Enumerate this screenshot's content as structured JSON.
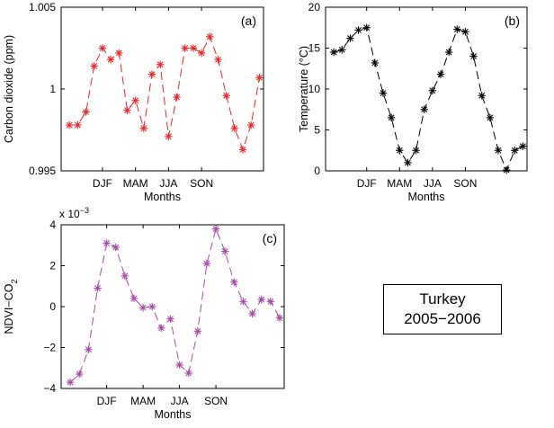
{
  "chart_data": [
    {
      "type": "line",
      "panel_label": "(a)",
      "xlabel": "Months",
      "ylabel": "Carbon dioxide (ppm)",
      "x_tick_labels": [
        "DJF",
        "MAM",
        "JJA",
        "SON"
      ],
      "x_tick_positions": [
        5,
        9,
        13,
        17
      ],
      "xlim": [
        0,
        21
      ],
      "ylim": [
        0.995,
        1.005
      ],
      "y_ticks": [
        0.995,
        1,
        1.005
      ],
      "y_tick_labels": [
        "0.995",
        "1",
        "1.005"
      ],
      "color": "#e8262a",
      "marker": "asterisk",
      "line_style": "dashed",
      "series": [
        {
          "x": [
            1,
            2,
            3,
            4,
            5,
            6,
            7,
            8,
            9,
            10,
            11,
            12,
            13,
            14,
            15,
            16,
            17,
            18,
            19,
            20
          ],
          "values": [
            0.9978,
            0.9978,
            0.9986,
            1.0014,
            1.0025,
            1.0018,
            1.0022,
            0.9987,
            0.9993,
            0.9976,
            1.0009,
            1.0015,
            0.9971,
            0.9995,
            1.0025,
            1.0025,
            1.0022,
            1.0032,
            1.0018,
            0.9996
          ]
        }
      ],
      "extra_series_tail": {
        "x": [
          21,
          22,
          23,
          24
        ],
        "values": [
          0.9976,
          0.9963,
          0.9978,
          1.0007
        ]
      }
    },
    {
      "type": "line",
      "panel_label": "(b)",
      "xlabel": "Months",
      "ylabel": "Temperature (°C)",
      "x_tick_labels": [
        "DJF",
        "MAM",
        "JJA",
        "SON"
      ],
      "x_tick_positions": [
        5,
        9,
        13,
        17
      ],
      "y_ticks": [
        0,
        5,
        10,
        15,
        20
      ],
      "y_tick_labels": [
        "0",
        "5",
        "10",
        "15",
        "20"
      ],
      "color": "#000000",
      "marker": "asterisk",
      "line_style": "dashed",
      "series": [
        {
          "x": [
            1,
            2,
            3,
            4,
            5,
            6,
            7,
            8,
            9,
            10,
            11,
            12,
            13,
            14,
            15,
            16,
            17,
            18,
            19,
            20,
            21,
            22,
            23,
            24
          ],
          "values": [
            14.5,
            14.8,
            16.2,
            17.2,
            17.5,
            13.2,
            9.5,
            6.5,
            2.5,
            1.0,
            2.5,
            7.5,
            9.8,
            11.8,
            14.5,
            17.3,
            17.0,
            14.0,
            9.2,
            6.5,
            2.5,
            0.1,
            2.5,
            3.0
          ]
        }
      ]
    },
    {
      "type": "line",
      "panel_label": "(c)",
      "xlabel": "Months",
      "ylabel": "NDVI−CO",
      "ylabel_subscript": "2",
      "y_exponent_label": "x 10",
      "y_exponent_power": "−3",
      "x_tick_labels": [
        "DJF",
        "MAM",
        "JJA",
        "SON"
      ],
      "x_tick_positions": [
        5,
        9,
        13,
        17
      ],
      "ylim": [
        -4,
        4
      ],
      "y_ticks": [
        -4,
        -2,
        0,
        2,
        4
      ],
      "y_tick_labels": [
        "−4",
        "−2",
        "0",
        "2",
        "4"
      ],
      "color": "#a64aa6",
      "marker": "asterisk",
      "line_style": "dashed",
      "series": [
        {
          "x": [
            1,
            2,
            3,
            4,
            5,
            6,
            7,
            8,
            9,
            10,
            11,
            12,
            13,
            14,
            15,
            16,
            17,
            18,
            19,
            20,
            21,
            22,
            23,
            24
          ],
          "values": [
            -3.7,
            -3.3,
            -2.1,
            0.9,
            3.1,
            2.9,
            1.5,
            0.4,
            -0.05,
            0.0,
            -1.05,
            -0.6,
            -2.85,
            -3.25,
            -1.2,
            2.1,
            3.8,
            2.7,
            1.2,
            0.25,
            -0.35,
            0.35,
            0.25,
            -0.55
          ]
        }
      ]
    }
  ],
  "caption": {
    "line1": "Turkey",
    "line2": "2005−2006"
  }
}
